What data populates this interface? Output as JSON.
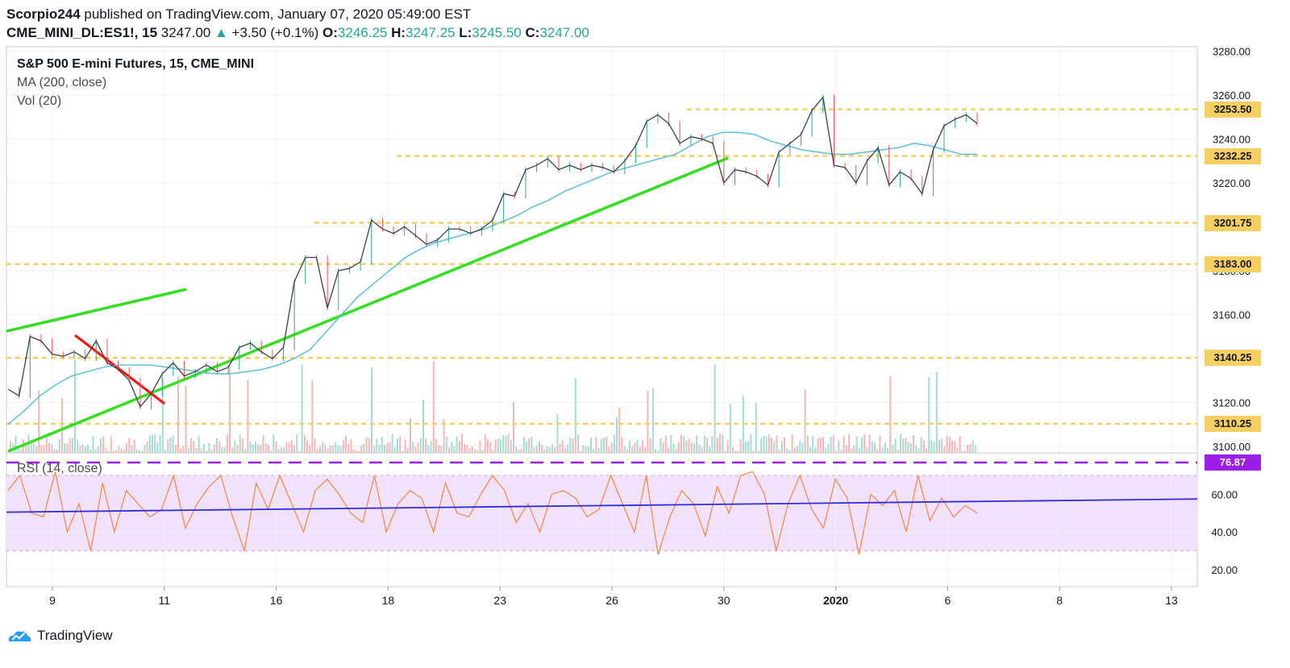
{
  "header": {
    "author": "Scorpio244",
    "published_text": "published on TradingView.com, January 07, 2020 05:49:00 EST",
    "symbol": "CME_MINI_DL:ES1!, 15",
    "last": "3247.00",
    "change_arrow": "▲",
    "change": "+3.50 (+0.1%)",
    "o_label": "O:",
    "o_value": "3246.25",
    "h_label": "H:",
    "h_value": "3247.25",
    "l_label": "L:",
    "l_value": "3245.50",
    "c_label": "C:",
    "c_value": "3247.00"
  },
  "legend": {
    "title": "S&P 500 E-mini Futures, 15, CME_MINI",
    "ma": "MA (200, close)",
    "vol": "Vol (20)",
    "rsi": "RSI (14, close)"
  },
  "footer": {
    "brand": "TradingView",
    "icon": "tradingview-cloud-logo-icon"
  },
  "colors": {
    "up": "#26a69a",
    "down": "#ef5350",
    "trendline": "#33e020",
    "redline": "#ff1010",
    "level": "#f5cf62",
    "ma": "#5bc0de",
    "rsi": "#f08838",
    "rsi_ma": "#2d2de0",
    "rsi_level": "#9b1fe6",
    "rsi_band": "#f1e1fc"
  },
  "chart_data": [
    {
      "type": "line",
      "title": "S&P 500 E-mini Futures, 15, CME_MINI",
      "x_ticks": [
        "9",
        "11",
        "16",
        "18",
        "23",
        "26",
        "30",
        "2020",
        "6",
        "8",
        "13"
      ],
      "y_ticks": [
        3100,
        3120,
        3140,
        3160,
        3180,
        3200,
        3220,
        3240,
        3260,
        3280
      ],
      "ylim": [
        3097,
        3282
      ],
      "price_labels": [
        "3253.50",
        "3232.25",
        "3201.75",
        "3183.00",
        "3140.25",
        "3110.25"
      ],
      "horizontal_levels": [
        3253.5,
        3232.25,
        3201.75,
        3183.0,
        3140.25,
        3110.25
      ],
      "series": [
        {
          "values": [
            3126,
            3123,
            3150,
            3148,
            3142,
            3141,
            3143,
            3140,
            3148,
            3138,
            3135,
            3130,
            3118,
            3124,
            3133,
            3138,
            3132,
            3134,
            3137,
            3134,
            3136,
            3145,
            3147,
            3143,
            3140,
            3145,
            3175,
            3186,
            3186,
            3163,
            3180,
            3181,
            3184,
            3203,
            3199,
            3197,
            3200,
            3196,
            3192,
            3194,
            3199,
            3199,
            3197,
            3199,
            3203,
            3215,
            3214,
            3226,
            3228,
            3231,
            3226,
            3228,
            3226,
            3228,
            3227,
            3225,
            3230,
            3237,
            3248,
            3251,
            3247,
            3238,
            3241,
            3240,
            3238,
            3220,
            3226,
            3225,
            3223,
            3219,
            3234,
            3238,
            3242,
            3253,
            3259,
            3228,
            3227,
            3220,
            3230,
            3236,
            3219,
            3225,
            3222,
            3215,
            3235,
            3246,
            3249,
            3251,
            3247
          ]
        },
        {
          "name": "MA (200, close)",
          "values": [
            3110,
            3116,
            3123,
            3128,
            3132,
            3134,
            3136,
            3137,
            3137,
            3137,
            3136,
            3135,
            3134,
            3133,
            3133,
            3134,
            3135,
            3137,
            3140,
            3144,
            3152,
            3160,
            3168,
            3174,
            3180,
            3186,
            3190,
            3193,
            3195,
            3197,
            3199,
            3202,
            3205,
            3209,
            3212,
            3216,
            3219,
            3222,
            3225,
            3227,
            3229,
            3231,
            3233,
            3237,
            3241,
            3243,
            3243,
            3242,
            3239,
            3237,
            3235,
            3234,
            3233,
            3233,
            3234,
            3235,
            3236,
            3238,
            3237,
            3235,
            3233,
            3233
          ]
        }
      ]
    },
    {
      "type": "line",
      "title": "RSI (14, close)",
      "y_ticks": [
        20,
        40,
        60
      ],
      "ylim": [
        11,
        82
      ],
      "band": [
        30,
        70
      ],
      "price_labels": [
        "76.87"
      ],
      "horizontal_levels": [
        76.87
      ],
      "series": [
        {
          "name": "RSI",
          "values": [
            62,
            70,
            50,
            48,
            72,
            40,
            55,
            30,
            66,
            40,
            62,
            55,
            48,
            52,
            70,
            42,
            55,
            64,
            70,
            48,
            30,
            66,
            52,
            70,
            55,
            40,
            62,
            68,
            60,
            50,
            45,
            70,
            40,
            55,
            62,
            58,
            40,
            66,
            50,
            48,
            60,
            70,
            62,
            45,
            55,
            40,
            60,
            62,
            58,
            48,
            52,
            70,
            55,
            40,
            70,
            28,
            48,
            62,
            55,
            38,
            64,
            50,
            70,
            72,
            60,
            30,
            55,
            70,
            52,
            42,
            68,
            58,
            28,
            60,
            54,
            62,
            40,
            70,
            46,
            58,
            48,
            54,
            50
          ]
        },
        {
          "name": "RSI MA",
          "values": [
            50.5,
            57.5
          ]
        }
      ]
    }
  ]
}
